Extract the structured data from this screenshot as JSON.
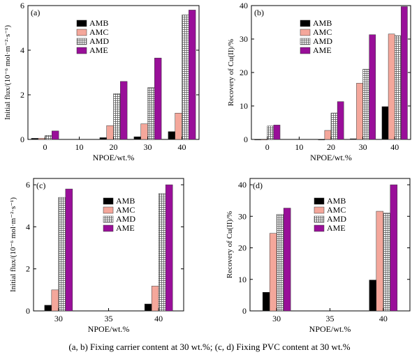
{
  "caption": "(a, b) Fixing carrier content at 30 wt.%; (c, d) Fixing PVC content at 30 wt.%",
  "series_colors": {
    "AMB": "#000000",
    "AMC": "#f4a79b",
    "AMD": "#bdbdbd",
    "AME": "#990f99"
  },
  "chart_data": [
    {
      "type": "bar",
      "panel_label": "(a)",
      "xlabel": "NPOE/wt.%",
      "ylabel": "Initial flux/(10⁻⁶ mol·m⁻²·s⁻¹)",
      "categories": [
        "0",
        "10",
        "20",
        "30",
        "40"
      ],
      "ylim": [
        0,
        6
      ],
      "yticks": [
        0,
        2,
        4,
        6
      ],
      "legend_position": "top-left",
      "series": [
        {
          "name": "AMB",
          "values": [
            0.05,
            null,
            0.08,
            0.12,
            0.35
          ]
        },
        {
          "name": "AMC",
          "values": [
            0.05,
            null,
            0.62,
            0.7,
            1.18
          ]
        },
        {
          "name": "AMD",
          "values": [
            0.18,
            null,
            2.05,
            2.32,
            5.58
          ]
        },
        {
          "name": "AME",
          "values": [
            0.38,
            null,
            2.6,
            3.65,
            5.8
          ]
        }
      ]
    },
    {
      "type": "bar",
      "panel_label": "(b)",
      "xlabel": "NPOE/wt.%",
      "ylabel": "Recovery of Cu(II)/%",
      "categories": [
        "0",
        "10",
        "20",
        "30",
        "40"
      ],
      "ylim": [
        0,
        40
      ],
      "yticks": [
        0,
        10,
        20,
        30,
        40
      ],
      "legend_position": "top-left",
      "series": [
        {
          "name": "AMB",
          "values": [
            0,
            null,
            0,
            0.2,
            9.8
          ]
        },
        {
          "name": "AMC",
          "values": [
            0,
            null,
            2.7,
            16.8,
            31.5
          ]
        },
        {
          "name": "AMD",
          "values": [
            4.0,
            null,
            7.9,
            21.0,
            31.0
          ]
        },
        {
          "name": "AME",
          "values": [
            4.3,
            null,
            11.3,
            31.3,
            39.7
          ]
        }
      ]
    },
    {
      "type": "bar",
      "panel_label": "(c)",
      "xlabel": "NPOE/wt.%",
      "ylabel": "Initial flux/(10⁻⁶ mol·m⁻²·s⁻¹)",
      "categories": [
        "30",
        "35",
        "40"
      ],
      "ylim": [
        0,
        6.3
      ],
      "yticks": [
        0,
        2,
        4,
        6
      ],
      "legend_position": "top-right",
      "series": [
        {
          "name": "AMB",
          "values": [
            0.27,
            null,
            0.33
          ]
        },
        {
          "name": "AMC",
          "values": [
            1.0,
            null,
            1.18
          ]
        },
        {
          "name": "AMD",
          "values": [
            5.4,
            null,
            5.58
          ]
        },
        {
          "name": "AME",
          "values": [
            5.8,
            null,
            6.0
          ]
        }
      ]
    },
    {
      "type": "bar",
      "panel_label": "(d)",
      "xlabel": "NPOE/wt.%",
      "ylabel": "Recovery of Cu(II)/%",
      "categories": [
        "30",
        "35",
        "40"
      ],
      "ylim": [
        0,
        42
      ],
      "yticks": [
        0,
        10,
        20,
        30,
        40
      ],
      "legend_position": "top-right",
      "series": [
        {
          "name": "AMB",
          "values": [
            5.9,
            null,
            9.8
          ]
        },
        {
          "name": "AMC",
          "values": [
            24.6,
            null,
            31.6
          ]
        },
        {
          "name": "AMD",
          "values": [
            30.6,
            null,
            31.0
          ]
        },
        {
          "name": "AME",
          "values": [
            32.6,
            null,
            40.0
          ]
        }
      ]
    }
  ]
}
